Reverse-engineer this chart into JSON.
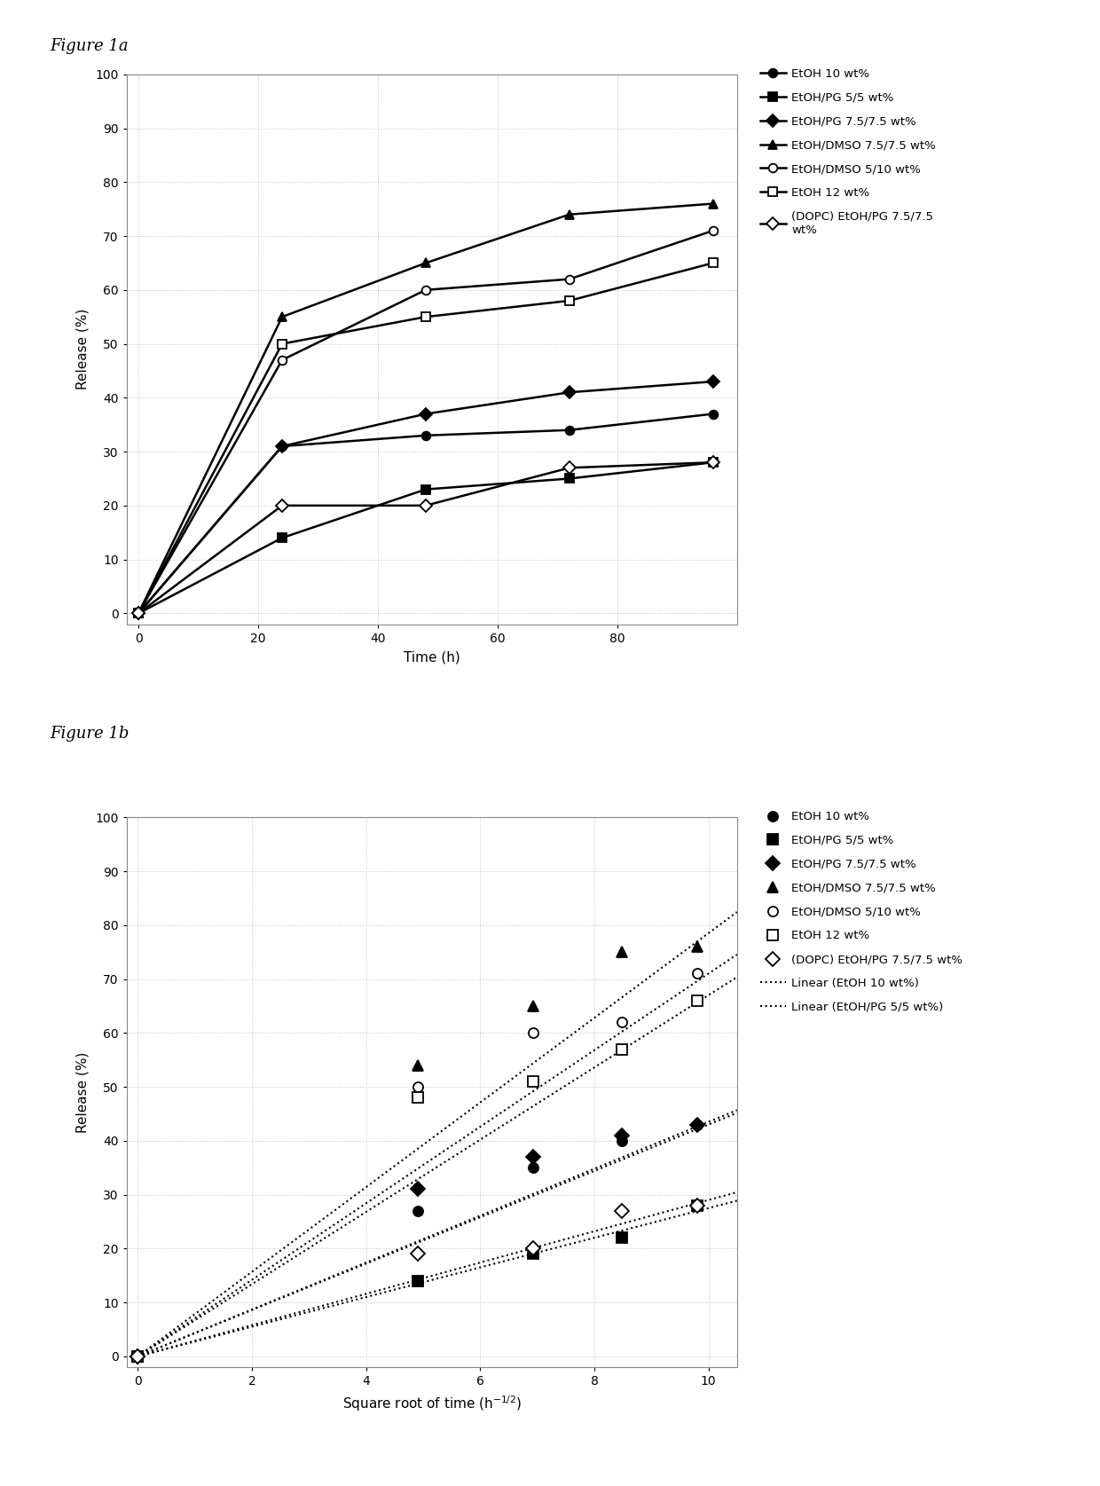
{
  "fig1a": {
    "title": "Figure 1a",
    "xlabel": "Time (h)",
    "ylabel": "Release (%)",
    "xlim": [
      -2,
      100
    ],
    "ylim": [
      -2,
      100
    ],
    "xticks": [
      0,
      20,
      40,
      60,
      80
    ],
    "yticks": [
      0,
      10,
      20,
      30,
      40,
      50,
      60,
      70,
      80,
      90,
      100
    ],
    "series": [
      {
        "label": "EtOH 10 wt%",
        "x": [
          0,
          24,
          48,
          72,
          96
        ],
        "y": [
          0,
          31,
          33,
          34,
          37
        ],
        "marker": "o",
        "fillstyle": "full",
        "linestyle": "-"
      },
      {
        "label": "EtOH/PG 5/5 wt%",
        "x": [
          0,
          24,
          48,
          72,
          96
        ],
        "y": [
          0,
          14,
          23,
          25,
          28
        ],
        "marker": "s",
        "fillstyle": "full",
        "linestyle": "-"
      },
      {
        "label": "EtOH/PG 7.5/7.5 wt%",
        "x": [
          0,
          24,
          48,
          72,
          96
        ],
        "y": [
          0,
          31,
          37,
          41,
          43
        ],
        "marker": "D",
        "fillstyle": "full",
        "linestyle": "-"
      },
      {
        "label": "EtOH/DMSO 7.5/7.5 wt%",
        "x": [
          0,
          24,
          48,
          72,
          96
        ],
        "y": [
          0,
          55,
          65,
          74,
          76
        ],
        "marker": "^",
        "fillstyle": "full",
        "linestyle": "-"
      },
      {
        "label": "EtOH/DMSO 5/10 wt%",
        "x": [
          0,
          24,
          48,
          72,
          96
        ],
        "y": [
          0,
          47,
          60,
          62,
          71
        ],
        "marker": "o",
        "fillstyle": "none",
        "linestyle": "-"
      },
      {
        "label": "EtOH 12 wt%",
        "x": [
          0,
          24,
          48,
          72,
          96
        ],
        "y": [
          0,
          50,
          55,
          58,
          65
        ],
        "marker": "s",
        "fillstyle": "none",
        "linestyle": "-"
      },
      {
        "label": "(DOPC) EtOH/PG 7.5/7.5\nwt%",
        "x": [
          0,
          24,
          48,
          72,
          96
        ],
        "y": [
          0,
          20,
          20,
          27,
          28
        ],
        "marker": "D",
        "fillstyle": "none",
        "linestyle": "-"
      }
    ]
  },
  "fig1b": {
    "title": "Figure 1b",
    "xlabel": "Square root of time (h$^{-1/2}$)",
    "ylabel": "Release (%)",
    "xlim": [
      -0.2,
      10.5
    ],
    "ylim": [
      -2,
      100
    ],
    "xticks": [
      0,
      2,
      4,
      6,
      8,
      10
    ],
    "yticks": [
      0,
      10,
      20,
      30,
      40,
      50,
      60,
      70,
      80,
      90,
      100
    ],
    "series": [
      {
        "label": "EtOH 10 wt%",
        "x": [
          0,
          4.899,
          6.928,
          8.485,
          9.798
        ],
        "y": [
          0,
          27,
          35,
          40,
          43
        ],
        "marker": "o",
        "fillstyle": "full"
      },
      {
        "label": "EtOH/PG 5/5 wt%",
        "x": [
          0,
          4.899,
          6.928,
          8.485,
          9.798
        ],
        "y": [
          0,
          14,
          19,
          22,
          28
        ],
        "marker": "s",
        "fillstyle": "full"
      },
      {
        "label": "EtOH/PG 7.5/7.5 wt%",
        "x": [
          0,
          4.899,
          6.928,
          8.485,
          9.798
        ],
        "y": [
          0,
          31,
          37,
          41,
          43
        ],
        "marker": "D",
        "fillstyle": "full"
      },
      {
        "label": "EtOH/DMSO 7.5/7.5 wt%",
        "x": [
          0,
          4.899,
          6.928,
          8.485,
          9.798
        ],
        "y": [
          0,
          54,
          65,
          75,
          76
        ],
        "marker": "^",
        "fillstyle": "full"
      },
      {
        "label": "EtOH/DMSO 5/10 wt%",
        "x": [
          0,
          4.899,
          6.928,
          8.485,
          9.798
        ],
        "y": [
          0,
          50,
          60,
          62,
          71
        ],
        "marker": "o",
        "fillstyle": "none"
      },
      {
        "label": "EtOH 12 wt%",
        "x": [
          0,
          4.899,
          6.928,
          8.485,
          9.798
        ],
        "y": [
          0,
          48,
          51,
          57,
          66
        ],
        "marker": "s",
        "fillstyle": "none"
      },
      {
        "label": "(DOPC) EtOH/PG 7.5/7.5 wt%",
        "x": [
          0,
          4.899,
          6.928,
          8.485,
          9.798
        ],
        "y": [
          0,
          19,
          20,
          27,
          28
        ],
        "marker": "D",
        "fillstyle": "none"
      }
    ],
    "linear_lines": [
      {
        "label": "Linear (EtOH 10 wt%)",
        "slope": 4.35,
        "intercept": 0
      },
      {
        "label": "Linear (EtOH/PG 5/5 wt%)",
        "slope": 2.75,
        "intercept": 0
      },
      {
        "label": null,
        "slope": 4.3,
        "intercept": 0
      },
      {
        "label": null,
        "slope": 7.85,
        "intercept": 0
      },
      {
        "label": null,
        "slope": 7.1,
        "intercept": 0
      },
      {
        "label": null,
        "slope": 6.7,
        "intercept": 0
      },
      {
        "label": null,
        "slope": 2.9,
        "intercept": 0
      }
    ]
  },
  "background_color": "#ffffff",
  "text_color": "#000000",
  "grid_color": "#b0b0b0",
  "marker_size": 7,
  "linewidth": 1.8
}
